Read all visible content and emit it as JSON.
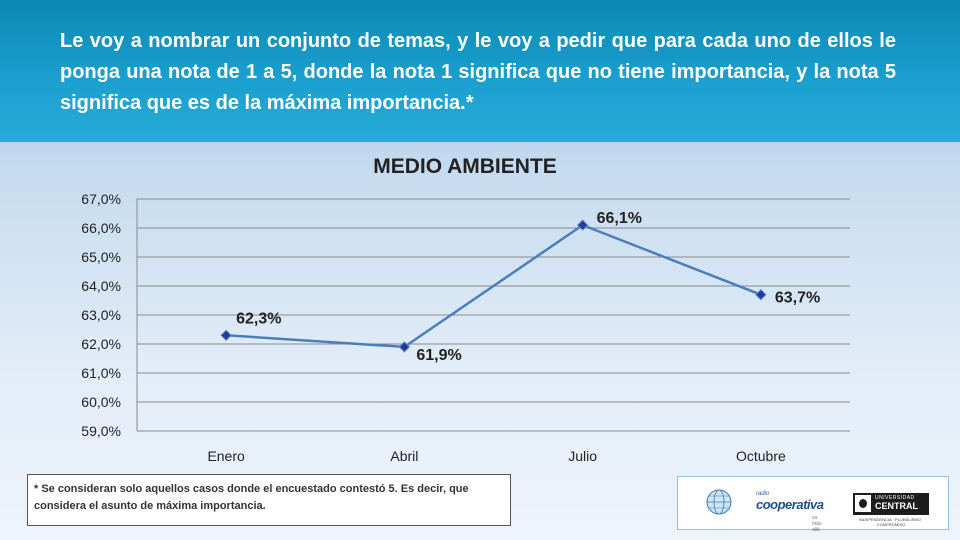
{
  "header": {
    "text": "Le voy a nombrar un conjunto de temas, y le voy a pedir que para cada uno de ellos le ponga una nota de 1 a 5, donde la nota 1 significa que no tiene importancia, y la nota 5 significa que es de la máxima importancia.*"
  },
  "chart_data": {
    "type": "line",
    "title": "MEDIO AMBIENTE",
    "categories": [
      "Enero",
      "Abril",
      "Julio",
      "Octubre"
    ],
    "series": [
      {
        "values": [
          62.3,
          61.9,
          66.1,
          63.7
        ],
        "color": "#4a7ebb",
        "marker_color": "#1f3c9c"
      }
    ],
    "data_labels": [
      "62,3%",
      "61,9%",
      "66,1%",
      "63,7%"
    ],
    "ylim": [
      59.0,
      67.0
    ],
    "yticks": [
      59.0,
      60.0,
      61.0,
      62.0,
      63.0,
      64.0,
      65.0,
      66.0,
      67.0
    ],
    "ytick_labels": [
      "59,0%",
      "60,0%",
      "61,0%",
      "62,0%",
      "63,0%",
      "64,0%",
      "65,0%",
      "66,0%",
      "67,0%"
    ],
    "xlabel": "",
    "ylabel": "",
    "grid": true,
    "legend": "none"
  },
  "footnote": {
    "text": "* Se consideran solo aquellos casos donde el encuestado contestó 5. Es decir, que considera el asunto de máxima importancia."
  },
  "logos": {
    "cooperativa_small": "radio",
    "cooperativa_name": "cooperativa",
    "cooperativa_tag": "va más allá",
    "ucentral_top": "UNIVERSIDAD",
    "ucentral_name": "CENTRAL",
    "ucentral_tag": "INDEPENDENCIA · PLURALISMO · COMPROMISO"
  }
}
